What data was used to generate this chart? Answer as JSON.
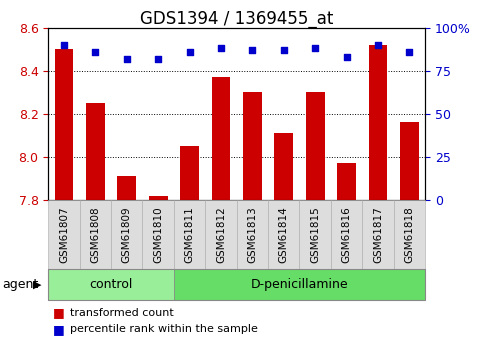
{
  "title": "GDS1394 / 1369455_at",
  "samples": [
    "GSM61807",
    "GSM61808",
    "GSM61809",
    "GSM61810",
    "GSM61811",
    "GSM61812",
    "GSM61813",
    "GSM61814",
    "GSM61815",
    "GSM61816",
    "GSM61817",
    "GSM61818"
  ],
  "bar_values": [
    8.5,
    8.25,
    7.91,
    7.82,
    8.05,
    8.37,
    8.3,
    8.11,
    8.3,
    7.97,
    8.52,
    8.16
  ],
  "dot_values": [
    90,
    86,
    82,
    82,
    86,
    88,
    87,
    87,
    88,
    83,
    90,
    86
  ],
  "ylim": [
    7.8,
    8.6
  ],
  "y2lim": [
    0,
    100
  ],
  "yticks": [
    7.8,
    8.0,
    8.2,
    8.4,
    8.6
  ],
  "y2ticks": [
    0,
    25,
    50,
    75,
    100
  ],
  "bar_color": "#cc0000",
  "dot_color": "#0000cc",
  "bar_width": 0.6,
  "groups": [
    {
      "label": "control",
      "start": 0,
      "end": 4,
      "color": "#99ee99"
    },
    {
      "label": "D-penicillamine",
      "start": 4,
      "end": 12,
      "color": "#66dd66"
    }
  ],
  "agent_label": "agent",
  "legend_bar_label": "transformed count",
  "legend_dot_label": "percentile rank within the sample",
  "background_color": "#ffffff",
  "plot_bg_color": "#ffffff",
  "grid_color": "#000000",
  "tick_label_color_left": "#cc0000",
  "tick_label_color_right": "#0000cc",
  "title_fontsize": 12,
  "tick_fontsize": 9,
  "label_fontsize": 9,
  "grid_lines": [
    8.0,
    8.2,
    8.4
  ]
}
